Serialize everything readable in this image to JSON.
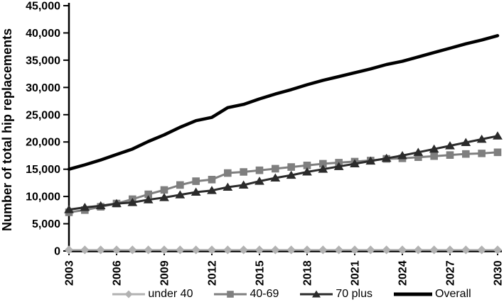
{
  "chart_data": {
    "type": "line",
    "title": "",
    "xlabel": "",
    "ylabel": "Number of total hip replacements",
    "ylim": [
      0,
      45000
    ],
    "grid": false,
    "legend_position": "bottom",
    "y_ticks": [
      "0",
      "5,000",
      "10,000",
      "15,000",
      "20,000",
      "25,000",
      "30,000",
      "35,000",
      "40,000",
      "45,000"
    ],
    "y_tick_values": [
      0,
      5000,
      10000,
      15000,
      20000,
      25000,
      30000,
      35000,
      40000,
      45000
    ],
    "x_ticks": [
      "2003",
      "2006",
      "2009",
      "2012",
      "2015",
      "2018",
      "2021",
      "2024",
      "2027",
      "2030"
    ],
    "years": [
      2003,
      2004,
      2005,
      2006,
      2007,
      2008,
      2009,
      2010,
      2011,
      2012,
      2013,
      2014,
      2015,
      2016,
      2017,
      2018,
      2019,
      2020,
      2021,
      2022,
      2023,
      2024,
      2025,
      2026,
      2027,
      2028,
      2029,
      2030
    ],
    "series": [
      {
        "name": "under 40",
        "marker": "diamond",
        "color": "#b2b2b2",
        "line_width": 2.5,
        "values": [
          200,
          200,
          200,
          200,
          200,
          200,
          200,
          200,
          200,
          200,
          200,
          200,
          200,
          200,
          200,
          200,
          200,
          200,
          200,
          200,
          200,
          200,
          200,
          200,
          200,
          200,
          200,
          200
        ]
      },
      {
        "name": "40-69",
        "marker": "square",
        "color": "#7f7f7f",
        "line_width": 3,
        "values": [
          7100,
          7500,
          8100,
          8700,
          9500,
          10400,
          11200,
          12100,
          12800,
          13100,
          14300,
          14500,
          14800,
          15100,
          15400,
          15700,
          16000,
          16200,
          16400,
          16600,
          16900,
          17000,
          17200,
          17400,
          17600,
          17800,
          17900,
          18100
        ]
      },
      {
        "name": "70 plus",
        "marker": "triangle",
        "color": "#2b2b2b",
        "line_width": 3,
        "values": [
          7600,
          8000,
          8300,
          8700,
          8900,
          9400,
          9800,
          10300,
          10800,
          11100,
          11700,
          12100,
          12800,
          13400,
          13900,
          14500,
          15000,
          15500,
          16000,
          16500,
          17000,
          17500,
          18100,
          18700,
          19300,
          19900,
          20500,
          21100
        ]
      },
      {
        "name": "Overall",
        "marker": "none",
        "color": "#000000",
        "line_width": 4.5,
        "values": [
          15000,
          15800,
          16700,
          17700,
          18700,
          20100,
          21300,
          22700,
          23900,
          24500,
          26300,
          26900,
          27900,
          28800,
          29600,
          30500,
          31300,
          32000,
          32700,
          33400,
          34200,
          34800,
          35600,
          36400,
          37200,
          38000,
          38700,
          39500
        ]
      }
    ]
  }
}
